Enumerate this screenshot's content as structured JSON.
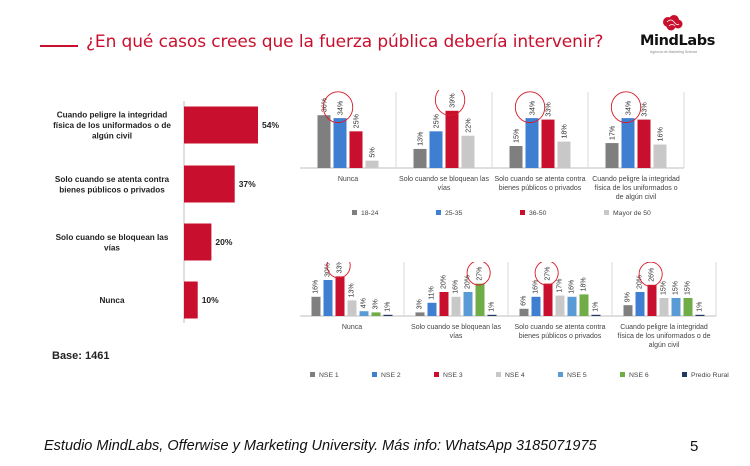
{
  "header": {
    "title": "¿En qué casos crees que la fuerza pública debería intervenir?",
    "logo_text": "MindLabs",
    "logo_sub": "Agencia de Marketing Science"
  },
  "base_label": "Base: 1461",
  "footer": {
    "text": "Estudio MindLabs, Offerwise y Marketing University. Más info: WhatsApp 3185071975",
    "page_number": "5"
  },
  "colors": {
    "accent": "#c8102e",
    "bar_main": "#c8102e",
    "highlight_circle": "#d81b2a"
  },
  "chart_data": [
    {
      "type": "bar",
      "orientation": "horizontal",
      "categories": [
        [
          "Cuando  peligre la integridad",
          "física de los uniformados o de",
          "algún civil"
        ],
        [
          "Solo cuando se atenta contra",
          "bienes públicos o privados"
        ],
        [
          "Solo cuando se bloquean las",
          "vías"
        ],
        [
          "Nunca"
        ]
      ],
      "values": [
        54,
        37,
        20,
        10
      ],
      "value_labels": [
        "54%",
        "37%",
        "20%",
        "10%"
      ],
      "xlim": [
        0,
        60
      ]
    },
    {
      "type": "bar",
      "categories": [
        [
          "Nunca"
        ],
        [
          "Solo cuando se bloquean las",
          "vías"
        ],
        [
          "Solo cuando se atenta contra",
          "bienes públicos o privados"
        ],
        [
          "Cuando  peligre la integridad",
          "física de los uniformados o",
          "de algún civil"
        ]
      ],
      "series": [
        {
          "name": "18-24",
          "color": "#7f7f7f",
          "values": [
            36,
            13,
            15,
            17
          ]
        },
        {
          "name": "25-35",
          "color": "#3f7fd2",
          "values": [
            34,
            25,
            34,
            34
          ]
        },
        {
          "name": "36-50",
          "color": "#c8102e",
          "values": [
            25,
            39,
            33,
            33
          ]
        },
        {
          "name": "Mayor de 50",
          "color": "#c8c8c8",
          "values": [
            5,
            22,
            18,
            16
          ]
        }
      ],
      "highlighted": [
        [
          0,
          1
        ],
        [
          1,
          2
        ],
        [
          2,
          1
        ],
        [
          3,
          1
        ]
      ],
      "ylim": [
        0,
        45
      ]
    },
    {
      "type": "bar",
      "categories": [
        [
          "Nunca"
        ],
        [
          "Solo cuando se bloquean las",
          "vías"
        ],
        [
          "Solo cuando se atenta contra",
          "bienes públicos o privados"
        ],
        [
          "Cuando  peligre la integridad",
          "física de los uniformados o de",
          "algún civil"
        ]
      ],
      "series": [
        {
          "name": "NSE 1",
          "color": "#7f7f7f",
          "values": [
            16,
            3,
            6,
            9
          ]
        },
        {
          "name": "NSE 2",
          "color": "#3f7fd2",
          "values": [
            30,
            11,
            16,
            20
          ]
        },
        {
          "name": "NSE 3",
          "color": "#c8102e",
          "values": [
            33,
            20,
            27,
            26
          ]
        },
        {
          "name": "NSE 4",
          "color": "#c8c8c8",
          "values": [
            13,
            16,
            17,
            15
          ]
        },
        {
          "name": "NSE 5",
          "color": "#5b9bd5",
          "values": [
            4,
            20,
            16,
            15
          ]
        },
        {
          "name": "NSE 6",
          "color": "#70ad47",
          "values": [
            3,
            27,
            18,
            15
          ]
        },
        {
          "name": "Predio Rural",
          "color": "#1f3864",
          "values": [
            1,
            1,
            1,
            1
          ]
        }
      ],
      "highlighted": [
        [
          0,
          2
        ],
        [
          1,
          5
        ],
        [
          2,
          2
        ],
        [
          3,
          2
        ]
      ],
      "ylim": [
        0,
        40
      ]
    }
  ]
}
